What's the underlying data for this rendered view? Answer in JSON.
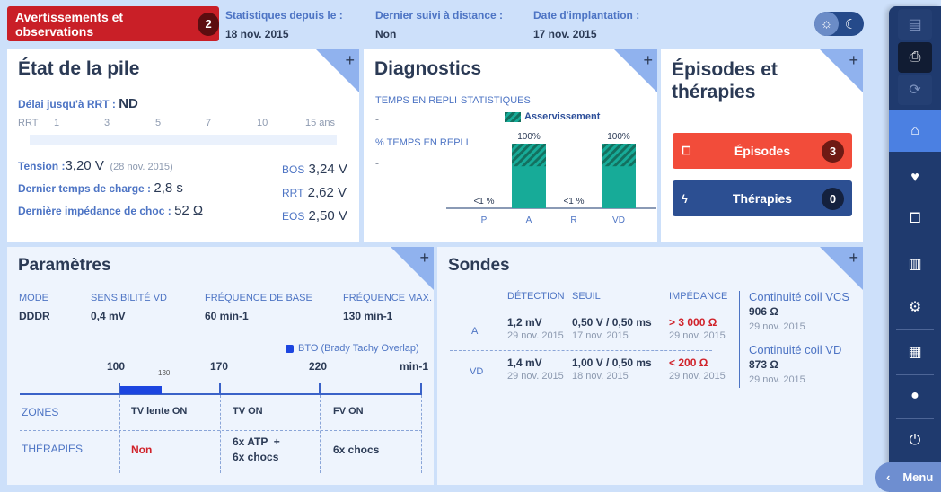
{
  "header": {
    "warnings_label": "Avertissements et observations",
    "warnings_count": "2",
    "stats": [
      {
        "label": "Statistiques depuis le :",
        "value": "18 nov. 2015"
      },
      {
        "label": "Dernier suivi à distance :",
        "value": "Non"
      },
      {
        "label": "Date d'implantation :",
        "value": "17 nov. 2015"
      }
    ]
  },
  "battery": {
    "title": "État de la pile",
    "rrt_delay_label": "Délai jusqu'à RRT :",
    "rrt_delay_value": "ND",
    "scale": [
      "RRT",
      "1",
      "3",
      "5",
      "7",
      "10",
      "15 ans"
    ],
    "tension_label": "Tension :",
    "tension_value": "3,20 V",
    "tension_date": "(28 nov. 2015)",
    "charge_label": "Dernier temps de charge :",
    "charge_value": "2,8 s",
    "impedance_label": "Dernière impédance de choc :",
    "impedance_value": "52 Ω",
    "thresholds": [
      {
        "label": "BOS",
        "value": "3,24 V"
      },
      {
        "label": "RRT",
        "value": "2,62 V"
      },
      {
        "label": "EOS",
        "value": "2,50 V"
      }
    ]
  },
  "diagnostics": {
    "title": "Diagnostics",
    "fallback_time_label": "TEMPS EN REPLI",
    "fallback_time_value": "-",
    "fallback_pct_label": "% TEMPS EN REPLI",
    "fallback_pct_value": "-",
    "stats_label": "STATISTIQUES",
    "chart_data": {
      "type": "bar",
      "legend": "Asservissement",
      "categories": [
        "P",
        "A",
        "R",
        "VD"
      ],
      "values": [
        1,
        100,
        1,
        100
      ],
      "labels": [
        "<1 %",
        "100%",
        "<1 %",
        "100%"
      ],
      "rate_response_fraction": [
        0,
        0.35,
        0,
        0.35
      ],
      "ylim": [
        0,
        100
      ]
    },
    "colors": {
      "bar": "#17ab98",
      "hatch": "#13705f"
    }
  },
  "episodes": {
    "title_line1": "Épisodes et",
    "title_line2": "thérapies",
    "episodes_label": "Épisodes",
    "episodes_count": "3",
    "therapies_label": "Thérapies",
    "therapies_count": "0"
  },
  "parameters": {
    "title": "Paramètres",
    "fields": [
      {
        "label": "MODE",
        "value": "DDDR"
      },
      {
        "label": "SENSIBILITÉ VD",
        "value": "0,4 mV"
      },
      {
        "label": "FRÉQUENCE DE BASE",
        "value": "60 min-1"
      },
      {
        "label": "FRÉQUENCE MAX.",
        "value": "130 min-1"
      }
    ],
    "bto_legend": "BTO (Brady Tachy Overlap)",
    "ticks": [
      "100",
      "170",
      "220",
      "min-1"
    ],
    "bto_end": "130",
    "zones_label": "ZONES",
    "therapies_label": "THÉRAPIES",
    "zones": [
      "TV lente ON",
      "TV ON",
      "FV ON"
    ],
    "therapies": [
      "Non",
      "6x ATP  +",
      "6x chocs"
    ],
    "therapy_tv_line2": "6x chocs"
  },
  "leads": {
    "title": "Sondes",
    "headers": [
      "DÉTECTION",
      "SEUIL",
      "IMPÉDANCE"
    ],
    "rows": [
      {
        "name": "A",
        "detection": "1,2 mV",
        "detection_date": "29 nov. 2015",
        "threshold": "0,50 V / 0,50 ms",
        "threshold_date": "17 nov. 2015",
        "impedance": "> 3 000 Ω",
        "impedance_date": "29 nov. 2015"
      },
      {
        "name": "VD",
        "detection": "1,4 mV",
        "detection_date": "29 nov. 2015",
        "threshold": "1,00 V / 0,50 ms",
        "threshold_date": "18 nov. 2015",
        "impedance": "< 200 Ω",
        "impedance_date": "29 nov. 2015"
      }
    ],
    "coils": [
      {
        "label": "Continuité coil VCS",
        "value": "906 Ω",
        "date": "29 nov. 2015"
      },
      {
        "label": "Continuité coil VD",
        "value": "873 Ω",
        "date": "29 nov. 2015"
      }
    ]
  },
  "sidebar": {
    "menu_label": "Menu"
  }
}
